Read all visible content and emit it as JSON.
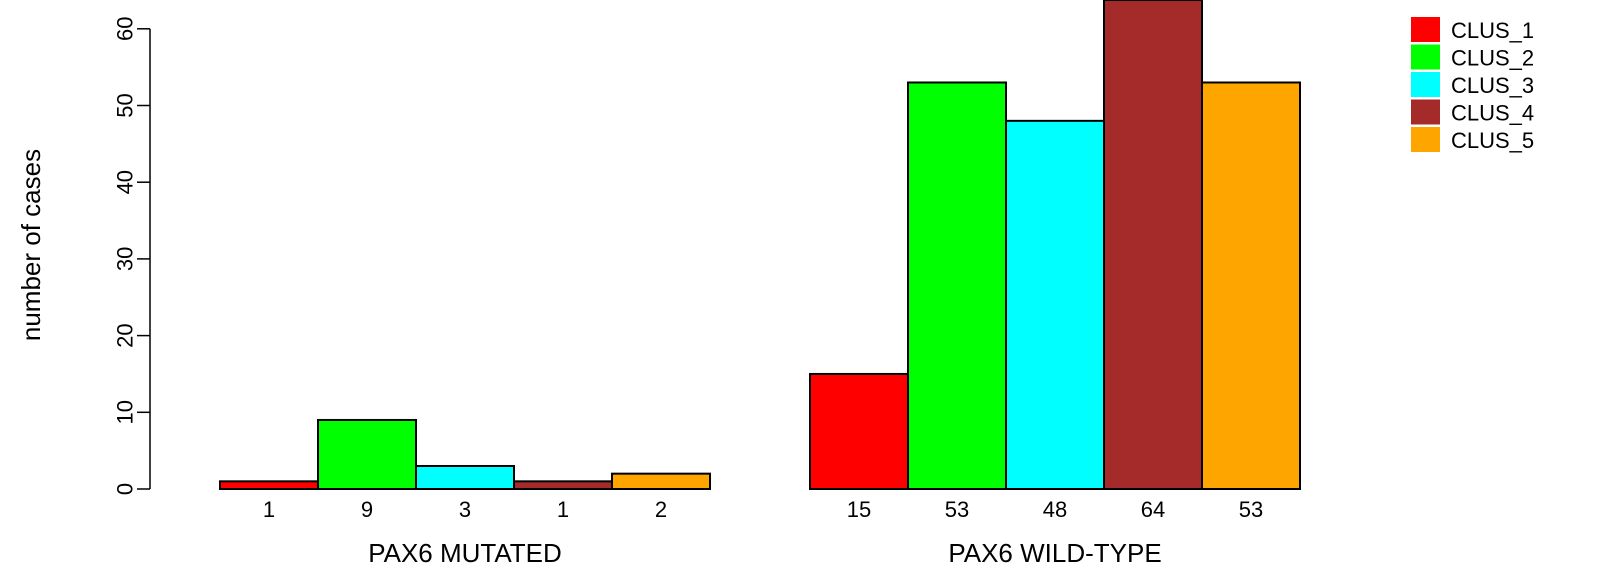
{
  "chart_data": {
    "type": "bar",
    "title": "",
    "ylabel": "number of cases",
    "ylim": [
      0,
      60
    ],
    "yticks": [
      0,
      10,
      20,
      30,
      40,
      50,
      60
    ],
    "grid": false,
    "legend_position": "top-right",
    "series": [
      {
        "name": "CLUS_1",
        "color": "#ff0000"
      },
      {
        "name": "CLUS_2",
        "color": "#00ff00"
      },
      {
        "name": "CLUS_3",
        "color": "#00ffff"
      },
      {
        "name": "CLUS_4",
        "color": "#a52a2a"
      },
      {
        "name": "CLUS_5",
        "color": "#ffa500"
      }
    ],
    "groups": [
      {
        "label": "PAX6 MUTATED",
        "values": [
          1,
          9,
          3,
          1,
          2
        ]
      },
      {
        "label": "PAX6 WILD-TYPE",
        "values": [
          15,
          53,
          48,
          64,
          53
        ]
      }
    ]
  }
}
